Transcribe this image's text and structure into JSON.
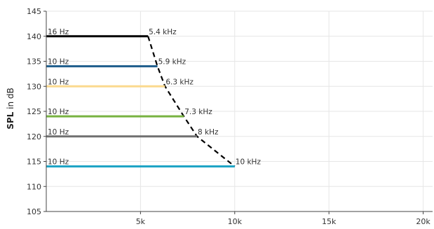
{
  "chart_data": {
    "type": "line",
    "title": "",
    "xlabel": "",
    "ylabel": {
      "bold": "SPL",
      "rest": " in dB"
    },
    "xlim": [
      0,
      20500
    ],
    "ylim": [
      105,
      145
    ],
    "x_ticks": [
      5000,
      10000,
      15000,
      20000
    ],
    "x_tick_labels": [
      "5k",
      "10k",
      "15k",
      "20k"
    ],
    "y_ticks": [
      105,
      110,
      115,
      120,
      125,
      130,
      135,
      140,
      145
    ],
    "grid": true,
    "colors": {
      "grid": "#e6e6e6",
      "axis": "#444444",
      "limit_curve": "#000000"
    },
    "ranges": [
      {
        "spl": 140,
        "f_low": 0,
        "f_high": 5400,
        "low_label": "16 Hz",
        "high_label": "5.4 kHz",
        "color": "#000000"
      },
      {
        "spl": 134,
        "f_low": 0,
        "f_high": 5900,
        "low_label": "10 Hz",
        "high_label": "5.9 kHz",
        "color": "#1f5e8c"
      },
      {
        "spl": 130,
        "f_low": 0,
        "f_high": 6300,
        "low_label": "10 Hz",
        "high_label": "6.3 kHz",
        "color": "#fbd98e"
      },
      {
        "spl": 124,
        "f_low": 0,
        "f_high": 7300,
        "low_label": "10 Hz",
        "high_label": "7.3 kHz",
        "color": "#77b240"
      },
      {
        "spl": 120,
        "f_low": 0,
        "f_high": 8000,
        "low_label": "10 Hz",
        "high_label": "8 kHz",
        "color": "#707070"
      },
      {
        "spl": 114,
        "f_low": 0,
        "f_high": 10000,
        "low_label": "10 Hz",
        "high_label": "10 kHz",
        "color": "#1ba3c4"
      }
    ]
  }
}
